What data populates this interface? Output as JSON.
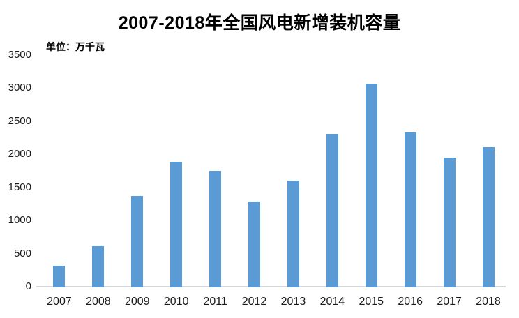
{
  "header": {
    "title": "2007-2018年全国风电新增装机容量",
    "unit_label": "单位：万千瓦"
  },
  "chart_data": {
    "type": "bar",
    "title": "2007-2018年全国风电新增装机容量",
    "unit": "万千瓦",
    "categories": [
      "2007",
      "2008",
      "2009",
      "2010",
      "2011",
      "2012",
      "2013",
      "2014",
      "2015",
      "2016",
      "2017",
      "2018"
    ],
    "values": [
      330,
      625,
      1380,
      1893,
      1763,
      1296,
      1610,
      2321,
      3075,
      2337,
      1966,
      2114
    ],
    "xlabel": "",
    "ylabel": "单位：万千瓦",
    "ylim": [
      0,
      3500
    ],
    "ytick_interval": 500,
    "yticks": [
      0,
      500,
      1000,
      1500,
      2000,
      2500,
      3000,
      3500
    ],
    "grid": false,
    "legend": false,
    "bar_color": "#5b9bd5",
    "axis_line_color": "#d9d9d9",
    "tick_text_color": "#1a1a1a",
    "title_color": "#000000",
    "background_color": "#ffffff"
  }
}
